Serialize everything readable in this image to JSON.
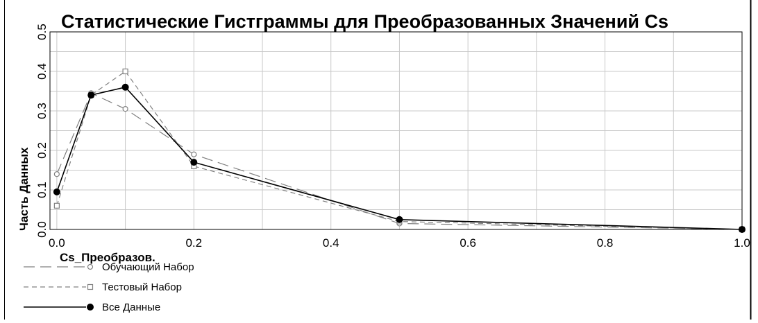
{
  "chart_data": {
    "type": "line",
    "title": "Статистические Гистграммы для Преобразованных Значений Cs",
    "xlabel": "Cs_Преобразов.",
    "ylabel": "Часть Данных",
    "x": [
      0.0,
      0.05,
      0.1,
      0.2,
      0.5,
      1.0
    ],
    "xlim": [
      -0.01,
      1.0
    ],
    "ylim": [
      0,
      0.5
    ],
    "x_ticks": [
      "0.0",
      "0.2",
      "0.4",
      "0.6",
      "0.8",
      "1.0"
    ],
    "y_ticks": [
      "0.0",
      "0.1",
      "0.2",
      "0.3",
      "0.4",
      "0.5"
    ],
    "grid": true,
    "legend_position": "bottom-left",
    "series": [
      {
        "name": "Обучающий Набор",
        "values": [
          0.14,
          0.345,
          0.305,
          0.19,
          0.015,
          0.0
        ],
        "color": "#808080",
        "dash": "long-dash",
        "marker": "circle-open"
      },
      {
        "name": "Тестовый Набор",
        "values": [
          0.06,
          0.34,
          0.4,
          0.16,
          0.02,
          0.0
        ],
        "color": "#808080",
        "dash": "dash",
        "marker": "square-open"
      },
      {
        "name": "Все Данные",
        "values": [
          0.095,
          0.34,
          0.36,
          0.17,
          0.025,
          0.0
        ],
        "color": "#000000",
        "dash": "solid",
        "marker": "circle-filled"
      }
    ]
  }
}
